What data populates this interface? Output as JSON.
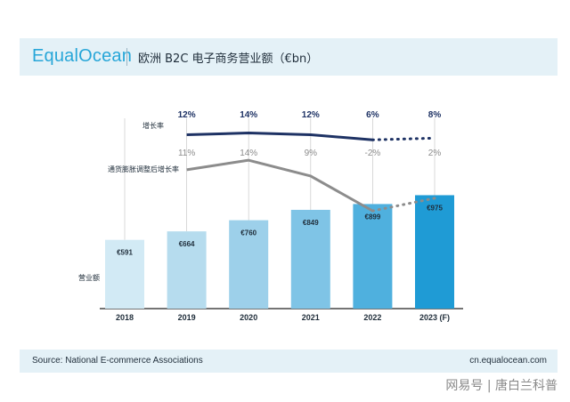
{
  "header": {
    "brand": "EqualOcean",
    "title": "欧洲 B2C 电子商务营业额（€bn）"
  },
  "chart_data": {
    "type": "bar",
    "categories": [
      "2018",
      "2019",
      "2020",
      "2021",
      "2022",
      "2023 (F)"
    ],
    "values": [
      591,
      664,
      760,
      849,
      899,
      975
    ],
    "value_labels": [
      "€591",
      "€664",
      "€760",
      "€849",
      "€899",
      "€975"
    ],
    "bar_series_label": "营业额",
    "bar_colors": [
      "#d2eaf5",
      "#b6dcee",
      "#9dd0ea",
      "#7fc4e6",
      "#4fb0de",
      "#1f9bd5"
    ],
    "ylim": [
      0,
      1000
    ],
    "lines": [
      {
        "name": "增长率",
        "color": "#1e3264",
        "values": [
          12,
          14,
          12,
          6,
          8
        ],
        "labels": [
          "12%",
          "14%",
          "12%",
          "6%",
          "8%"
        ],
        "categories": [
          "2019",
          "2020",
          "2021",
          "2022",
          "2023 (F)"
        ],
        "forecast_dotted_from": "2022"
      },
      {
        "name": "通货膨胀调整后增长率",
        "color": "#8c8c8c",
        "values": [
          11,
          14,
          9,
          -2,
          2
        ],
        "labels": [
          "11%",
          "14%",
          "9%",
          "-2%",
          "2%"
        ],
        "categories": [
          "2019",
          "2020",
          "2021",
          "2022",
          "2023 (F)"
        ],
        "forecast_dotted_from": "2022"
      }
    ]
  },
  "footer": {
    "source": "Source: National E-commerce Associations",
    "site": "cn.equalocean.com"
  },
  "watermark": "网易号 | 唐白兰科普"
}
